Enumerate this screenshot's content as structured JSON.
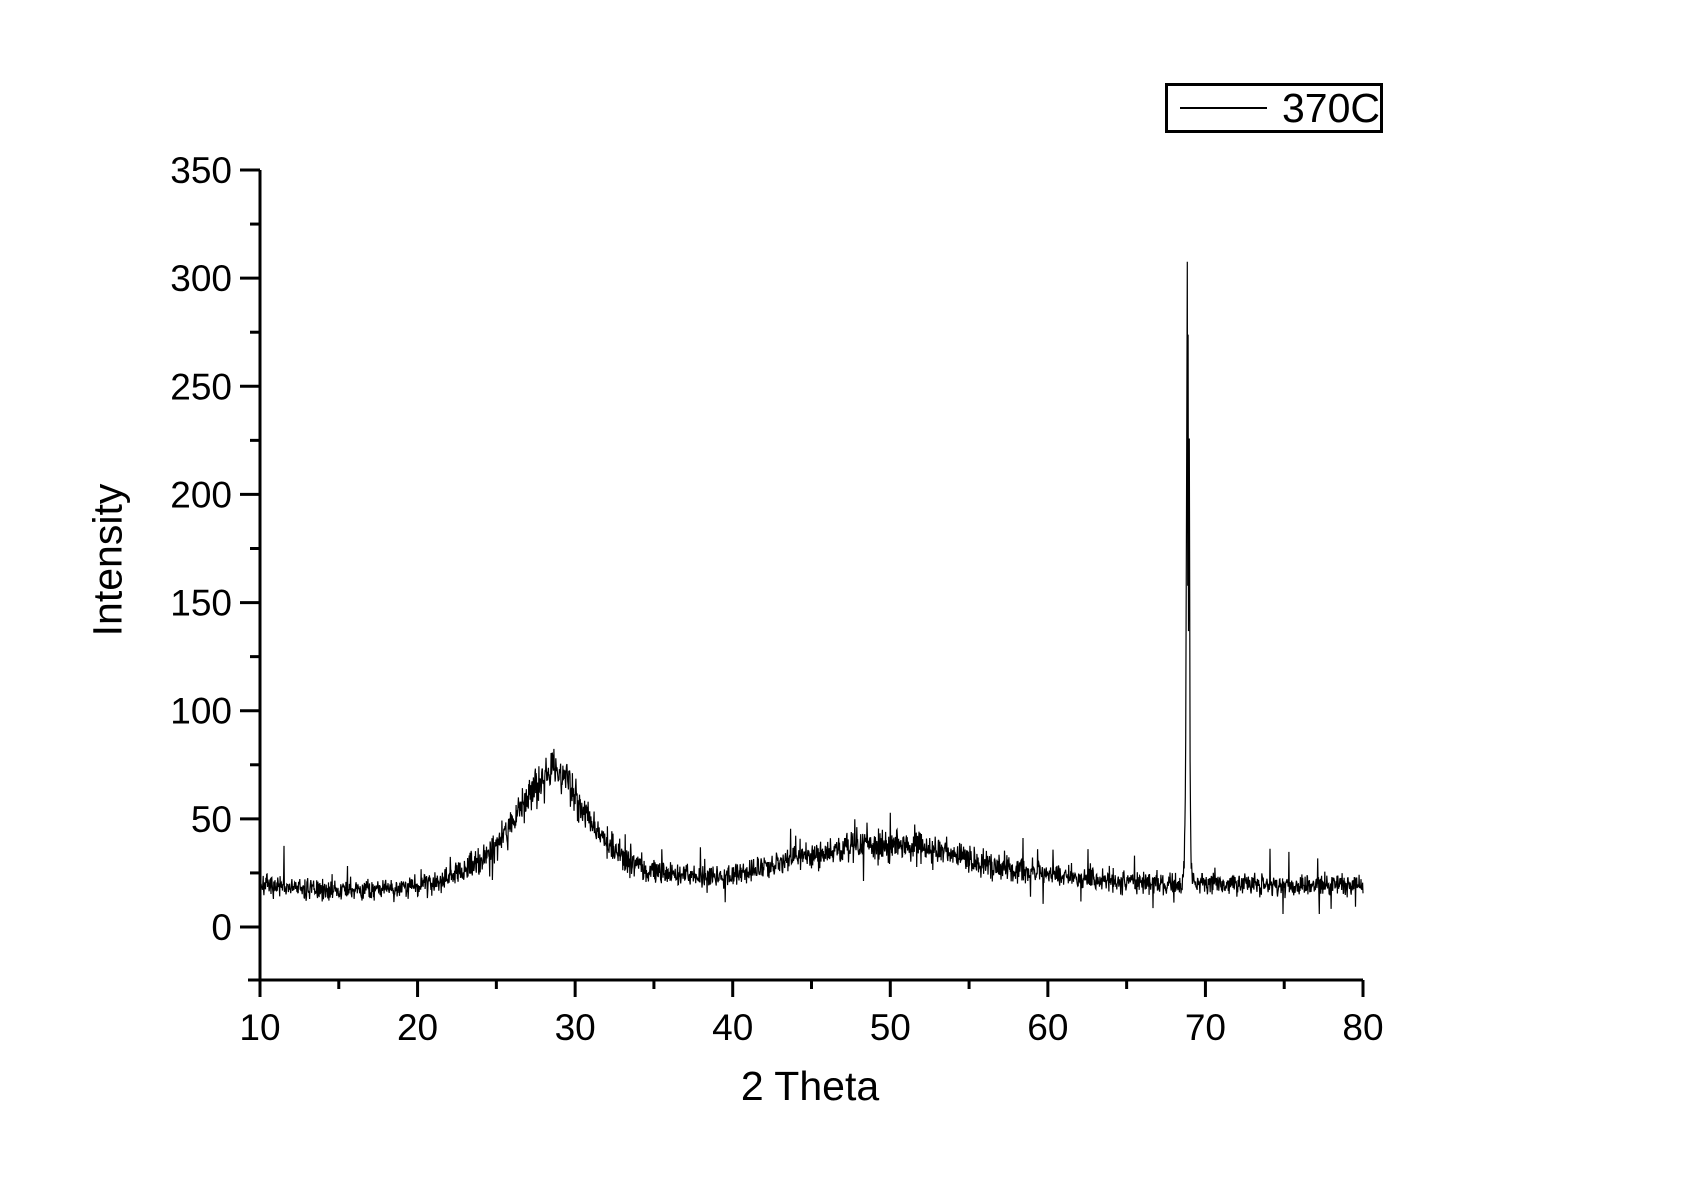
{
  "page": {
    "background": "#ffffff",
    "foreground": "#000000"
  },
  "chart_data": {
    "type": "line",
    "title": "",
    "xlabel": "2 Theta",
    "ylabel": "Intensity",
    "xlim": [
      10,
      80
    ],
    "ylim": [
      -25,
      350
    ],
    "grid": false,
    "background": "#ffffff",
    "axis_color": "#000000",
    "x_ticks": [
      10,
      20,
      30,
      40,
      50,
      60,
      70,
      80
    ],
    "y_ticks": [
      0,
      50,
      100,
      150,
      200,
      250,
      300,
      350
    ],
    "x_minor_tick_step": 5,
    "y_minor_tick_step": 25,
    "legend": {
      "position": "top-right",
      "entries": [
        {
          "label": "370C",
          "color": "#000000"
        }
      ]
    },
    "series": [
      {
        "name": "370C",
        "color": "#000000",
        "sample_step": 0.025,
        "noise": {
          "seed": 7,
          "base_amplitude": 4.5,
          "relative_amplitude": 0.16,
          "max_amplitude": 14,
          "spike_probability": 0.02,
          "spike_amplitude": 16,
          "min_value": 6
        },
        "envelope_points": [
          [
            10,
            20
          ],
          [
            11,
            18.5
          ],
          [
            12,
            18
          ],
          [
            13,
            17.5
          ],
          [
            14,
            17
          ],
          [
            15,
            17
          ],
          [
            16,
            17
          ],
          [
            17,
            17.5
          ],
          [
            18,
            18
          ],
          [
            19,
            18.5
          ],
          [
            20,
            19.5
          ],
          [
            21,
            21
          ],
          [
            22,
            23.5
          ],
          [
            23,
            26.5
          ],
          [
            24,
            31
          ],
          [
            25,
            38
          ],
          [
            26,
            48
          ],
          [
            26.5,
            54
          ],
          [
            27,
            60
          ],
          [
            27.5,
            65
          ],
          [
            28,
            69
          ],
          [
            28.5,
            72
          ],
          [
            29,
            73
          ],
          [
            29.4,
            70
          ],
          [
            29.8,
            65
          ],
          [
            30.2,
            59
          ],
          [
            30.6,
            53
          ],
          [
            31,
            48
          ],
          [
            31.5,
            43
          ],
          [
            32,
            39
          ],
          [
            32.5,
            36
          ],
          [
            33,
            33
          ],
          [
            33.5,
            30.5
          ],
          [
            34,
            28.5
          ],
          [
            34.5,
            27
          ],
          [
            35,
            26
          ],
          [
            36,
            24.5
          ],
          [
            37,
            24
          ],
          [
            38,
            23.5
          ],
          [
            39,
            23.5
          ],
          [
            40,
            24
          ],
          [
            41,
            25.5
          ],
          [
            42,
            27.5
          ],
          [
            43,
            29.5
          ],
          [
            44,
            31.5
          ],
          [
            45,
            33.5
          ],
          [
            46,
            35
          ],
          [
            47,
            36.5
          ],
          [
            48,
            37.5
          ],
          [
            49,
            38
          ],
          [
            50,
            37.5
          ],
          [
            51,
            37
          ],
          [
            52,
            36
          ],
          [
            53,
            35
          ],
          [
            54,
            33.5
          ],
          [
            55,
            31.5
          ],
          [
            56,
            29.5
          ],
          [
            57,
            28
          ],
          [
            58,
            26.5
          ],
          [
            59,
            25.5
          ],
          [
            60,
            24.5
          ],
          [
            61,
            23.5
          ],
          [
            62,
            22.5
          ],
          [
            63,
            22
          ],
          [
            64,
            21.5
          ],
          [
            65,
            21
          ],
          [
            66,
            20.5
          ],
          [
            67,
            20
          ],
          [
            67.5,
            19.5
          ],
          [
            68,
            19.5
          ],
          [
            68.5,
            21
          ],
          [
            68.65,
            26
          ],
          [
            68.7,
            45
          ],
          [
            68.75,
            90
          ],
          [
            68.775,
            140
          ],
          [
            68.85,
            310
          ],
          [
            68.875,
            160
          ],
          [
            68.9,
            270
          ],
          [
            68.925,
            130
          ],
          [
            68.975,
            223
          ],
          [
            69.025,
            80
          ],
          [
            69.075,
            35
          ],
          [
            69.15,
            24
          ],
          [
            69.3,
            21
          ],
          [
            70,
            20.5
          ],
          [
            71,
            20
          ],
          [
            72,
            19.5
          ],
          [
            73,
            19.5
          ],
          [
            74,
            19
          ],
          [
            75,
            19.5
          ],
          [
            76,
            19.5
          ],
          [
            77,
            19
          ],
          [
            78,
            19.5
          ],
          [
            79,
            19.5
          ],
          [
            80,
            19.5
          ]
        ],
        "notable_features": {
          "broad_hump_1": {
            "x": 28.7,
            "peak_intensity": 73
          },
          "broad_hump_2": {
            "x": 48.5,
            "peak_intensity": 38
          },
          "sharp_peak": {
            "x": 68.85,
            "peak_intensity": 310,
            "secondary_spike_intensity": 223
          },
          "baseline_intensity": 19
        }
      }
    ]
  }
}
